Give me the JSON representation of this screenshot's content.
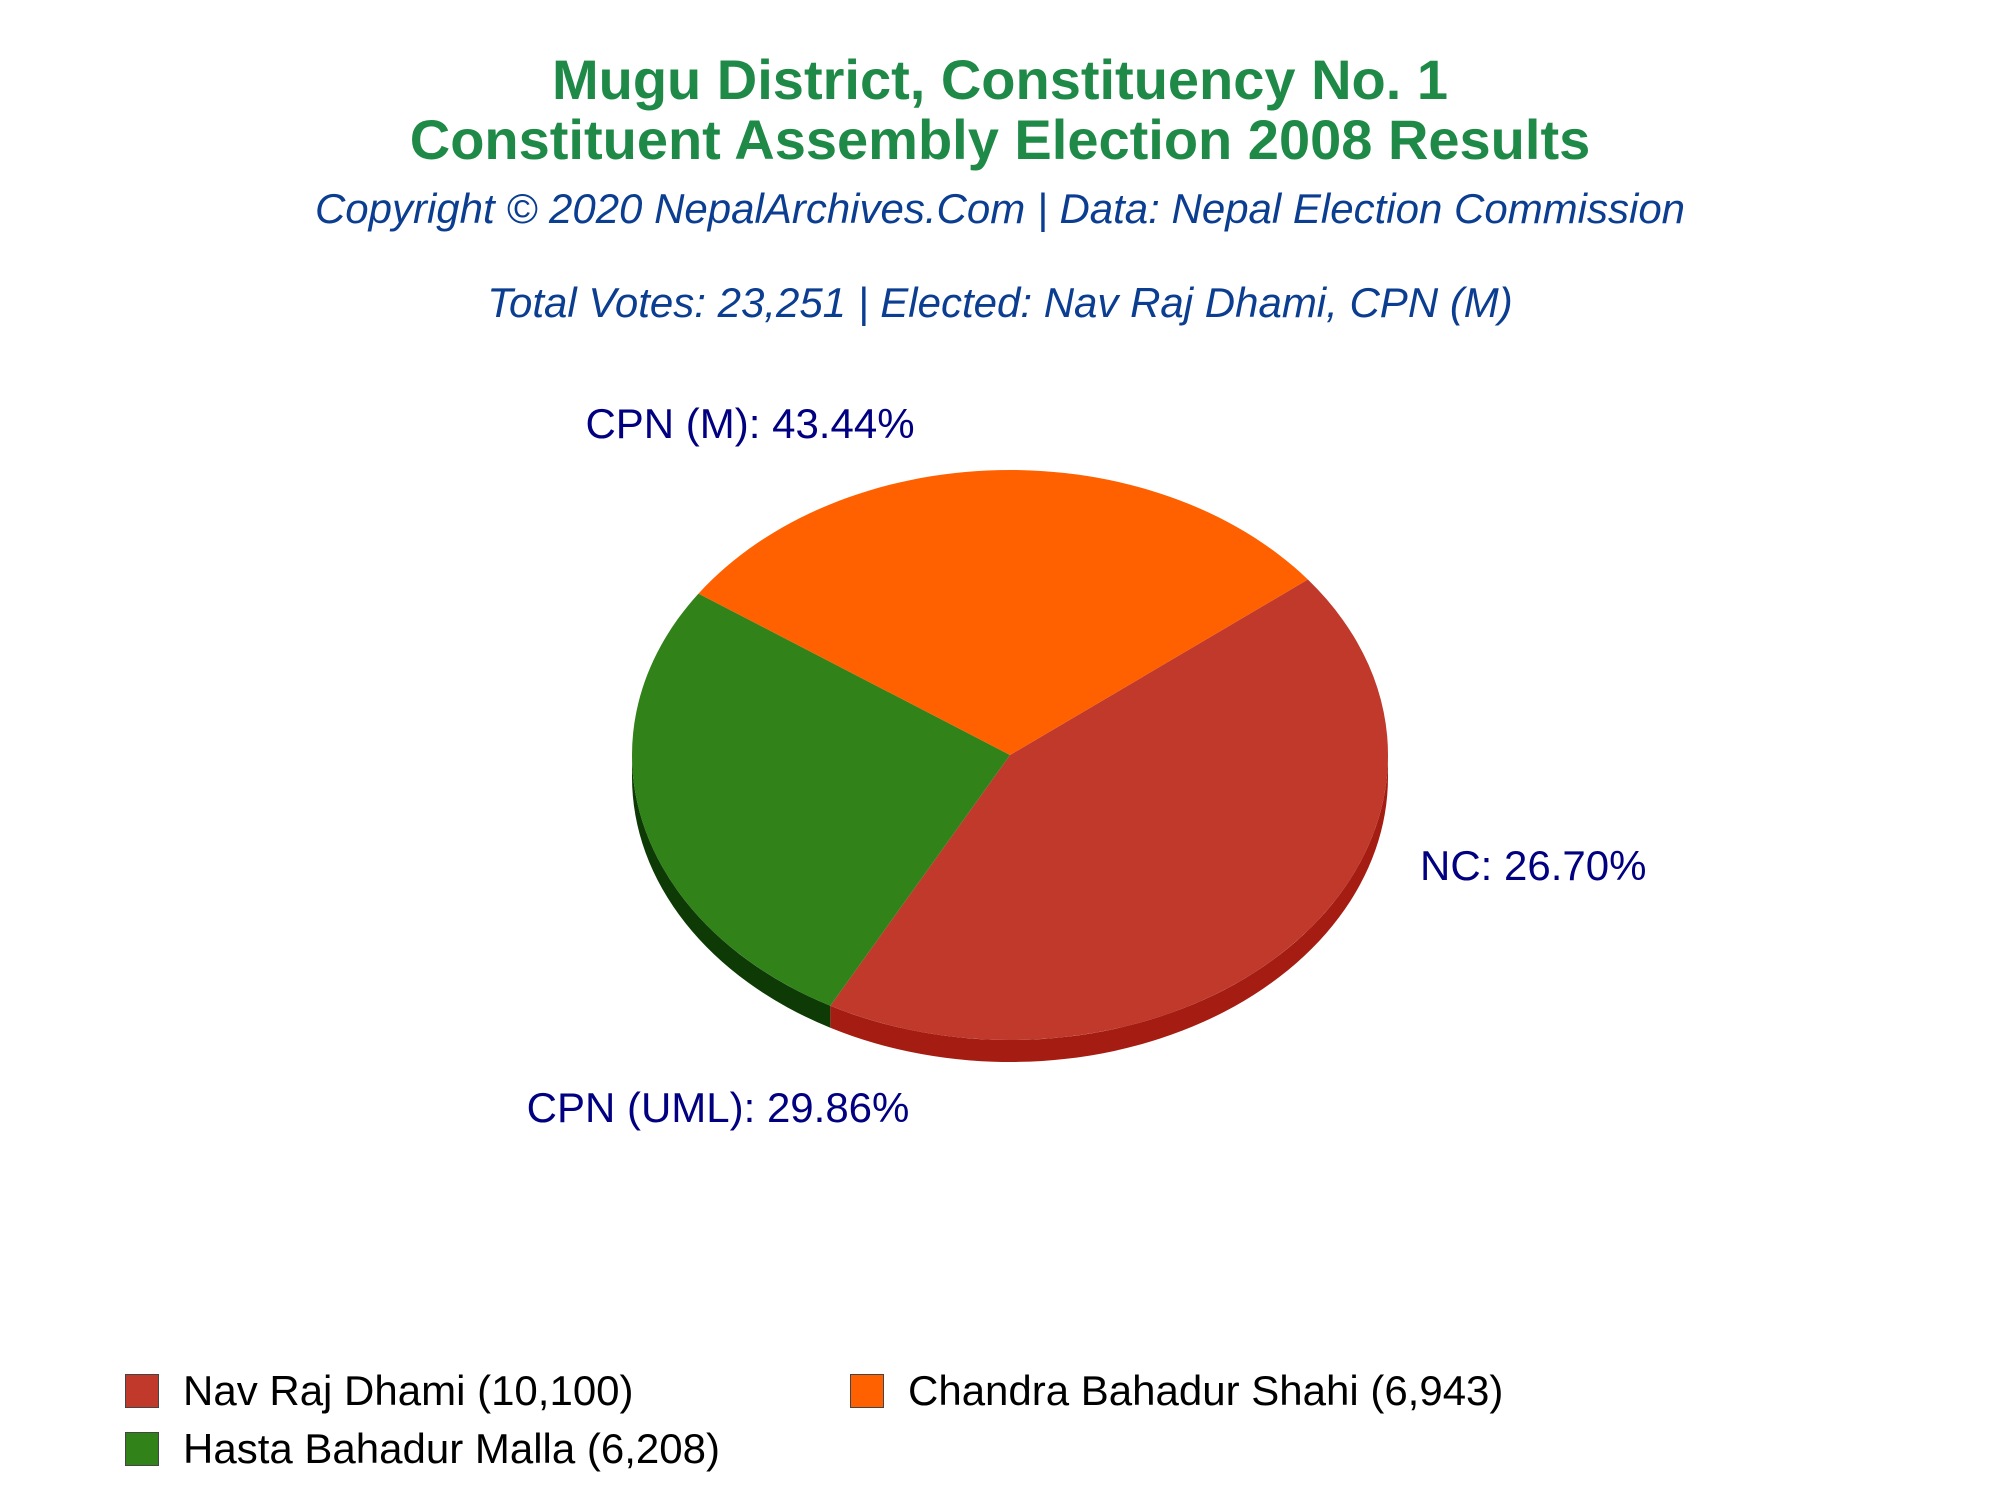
{
  "header": {
    "title_line1": "Mugu District, Constituency No. 1",
    "title_line2": "Constituent Assembly Election 2008 Results",
    "copyright": "Copyright © 2020 NepalArchives.Com | Data: Nepal Election Commission",
    "summary": "Total Votes: 23,251 | Elected: Nav Raj Dhami, CPN (M)"
  },
  "chart_data": {
    "type": "pie",
    "title": "Mugu District, Constituency No. 1",
    "subtitle": "Constituent Assembly Election 2008 Results",
    "total_votes": 23251,
    "slices": [
      {
        "party": "CPN (M)",
        "candidate": "Nav Raj Dhami",
        "votes": 10100,
        "percent": 43.44,
        "label": "CPN (M): 43.44%",
        "legend": "Nav Raj Dhami (10,100)",
        "color": "#c0392b",
        "side_color": "#a51d12"
      },
      {
        "party": "NC",
        "candidate": "Hasta Bahadur Malla",
        "votes": 6208,
        "percent": 26.7,
        "label": "NC: 26.70%",
        "legend": "Hasta Bahadur Malla (6,208)",
        "color": "#318218",
        "side_color": "#0d3a05"
      },
      {
        "party": "CPN (UML)",
        "candidate": "Chandra Bahadur Shahi",
        "votes": 6943,
        "percent": 29.86,
        "label": "CPN (UML): 29.86%",
        "legend": "Chandra Bahadur Shahi (6,943)",
        "color": "#ff6000",
        "side_color": "#b30000"
      }
    ],
    "legend_position": "bottom"
  }
}
